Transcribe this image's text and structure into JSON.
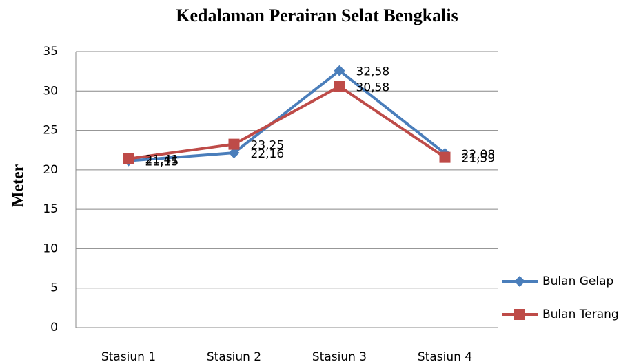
{
  "chart_data": {
    "type": "line",
    "title": "Kedalaman Perairan Selat Bengkalis",
    "ylabel": "Meter",
    "categories": [
      "Stasiun 1",
      "Stasiun 2",
      "Stasiun 3",
      "Stasiun 4"
    ],
    "series": [
      {
        "name": "Bulan Gelap",
        "color": "#4a7ebb",
        "marker": "diamond",
        "values": [
          21.15,
          22.16,
          32.58,
          22.08
        ],
        "value_labels": [
          "21,15",
          "22,16",
          "32,58",
          "22,08"
        ]
      },
      {
        "name": "Bulan Terang",
        "color": "#be4b48",
        "marker": "square",
        "values": [
          21.41,
          23.25,
          30.58,
          21.59
        ],
        "value_labels": [
          "21,41",
          "23,25",
          "30,58",
          "21,59"
        ]
      }
    ],
    "ylim": [
      0,
      35
    ],
    "yticks": [
      0,
      5,
      10,
      15,
      20,
      25,
      30,
      35
    ],
    "grid": true,
    "legend": "right"
  }
}
